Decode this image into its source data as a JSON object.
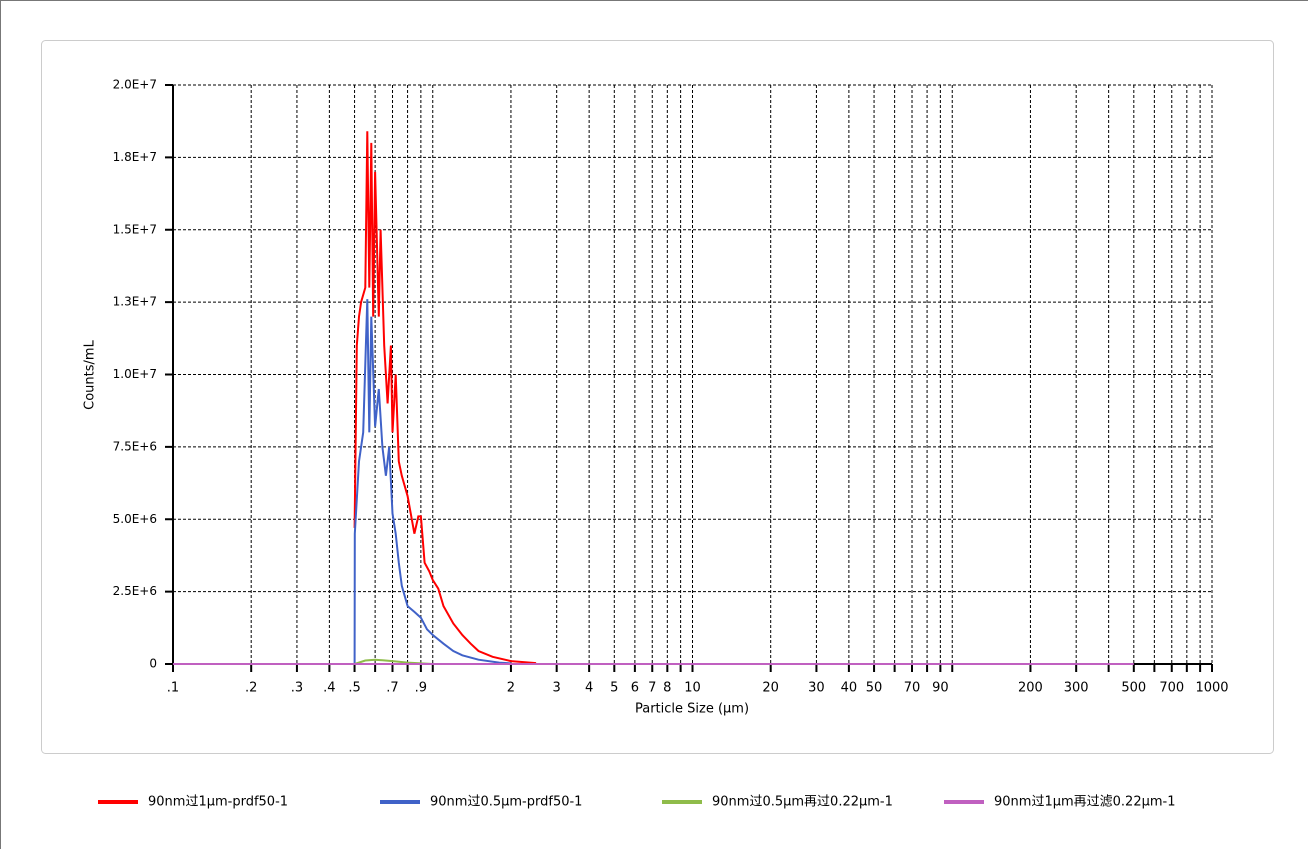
{
  "chart_data": {
    "type": "line",
    "xlabel": "Particle Size (µm)",
    "ylabel": "Counts/mL",
    "xscale": "log",
    "grid": true,
    "legend": "bottom",
    "xlim": [
      0.1,
      1000
    ],
    "ylim": [
      0,
      20000000
    ],
    "xticks": [
      {
        "value": 0.1,
        "label": ".1"
      },
      {
        "value": 0.2,
        "label": ".2"
      },
      {
        "value": 0.3,
        "label": ".3"
      },
      {
        "value": 0.4,
        "label": ".4"
      },
      {
        "value": 0.5,
        "label": ".5"
      },
      {
        "value": 0.7,
        "label": ".7"
      },
      {
        "value": 0.9,
        "label": ".9"
      },
      2,
      3,
      4,
      5,
      6,
      7,
      8,
      10,
      20,
      30,
      40,
      50,
      70,
      90,
      200,
      300,
      500,
      700,
      1000
    ],
    "x_minor_ticks": [
      0.6,
      0.8,
      1,
      9,
      60,
      80,
      100,
      400,
      600,
      800,
      900
    ],
    "yticks": [
      0,
      {
        "value": 2500000,
        "label": "2.5E+6"
      },
      {
        "value": 5000000,
        "label": "5.0E+6"
      },
      {
        "value": 7500000,
        "label": "7.5E+6"
      },
      {
        "value": 10000000,
        "label": "1.0E+7"
      },
      {
        "value": 12500000,
        "label": "1.3E+7"
      },
      {
        "value": 15000000,
        "label": "1.5E+7"
      },
      {
        "value": 17500000,
        "label": "1.8E+7"
      },
      {
        "value": 20000000,
        "label": "2.0E+7"
      }
    ],
    "series": [
      {
        "name": "90nm过1µm-prdf50-1",
        "color": "#ff0000",
        "x": [
          0.5,
          0.51,
          0.52,
          0.53,
          0.55,
          0.56,
          0.57,
          0.58,
          0.59,
          0.6,
          0.62,
          0.63,
          0.65,
          0.67,
          0.69,
          0.7,
          0.72,
          0.74,
          0.76,
          0.8,
          0.85,
          0.88,
          0.9,
          0.93,
          0.97,
          1.0,
          1.05,
          1.1,
          1.2,
          1.3,
          1.4,
          1.5,
          1.7,
          2.0,
          2.5
        ],
        "values": [
          4700000,
          11000000,
          12000000,
          12500000,
          13000000,
          18400000,
          13000000,
          18000000,
          12000000,
          17000000,
          12000000,
          15000000,
          11000000,
          9000000,
          11000000,
          8000000,
          10000000,
          7000000,
          6500000,
          5800000,
          4500000,
          5100000,
          5100000,
          3500000,
          3200000,
          2900000,
          2600000,
          2000000,
          1400000,
          1000000,
          700000,
          450000,
          250000,
          100000,
          30000
        ]
      },
      {
        "name": "90nm过0.5µm-prdf50-1",
        "color": "#4062c8",
        "x": [
          0.5,
          0.501,
          0.52,
          0.54,
          0.56,
          0.57,
          0.58,
          0.6,
          0.62,
          0.64,
          0.66,
          0.68,
          0.7,
          0.72,
          0.74,
          0.76,
          0.8,
          0.85,
          0.9,
          0.95,
          1.0,
          1.1,
          1.2,
          1.3,
          1.5,
          1.8,
          2.0
        ],
        "values": [
          0,
          4500000,
          7000000,
          8000000,
          12600000,
          8000000,
          12000000,
          8200000,
          9500000,
          7500000,
          6500000,
          7500000,
          5200000,
          4500000,
          3500000,
          2700000,
          2000000,
          1800000,
          1600000,
          1200000,
          1000000,
          700000,
          450000,
          300000,
          150000,
          50000,
          20000
        ]
      },
      {
        "name": "90nm过0.5µm再过0.22µm-1",
        "color": "#8fbc4a",
        "x": [
          0.5,
          0.55,
          0.6,
          0.7,
          0.8,
          1.0
        ],
        "values": [
          0,
          120000,
          150000,
          100000,
          50000,
          0
        ]
      },
      {
        "name": "90nm过1µm再过滤0.22µm-1",
        "color": "#c060c0",
        "x": [
          0.1,
          0.5,
          500
        ],
        "values": [
          0,
          0,
          0
        ]
      }
    ]
  }
}
